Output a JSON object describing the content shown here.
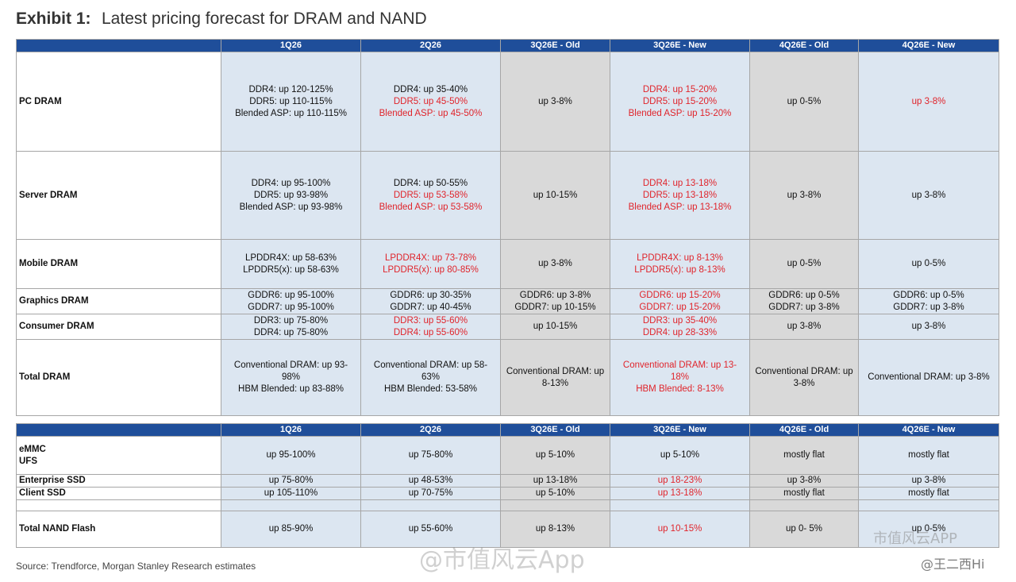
{
  "header": {
    "exhibit": "Exhibit 1:",
    "title": "Latest pricing forecast for DRAM and NAND"
  },
  "columns": [
    "1Q26",
    "2Q26",
    "3Q26E - Old",
    "3Q26E - New",
    "4Q26E - Old",
    "4Q26E - New"
  ],
  "dram": {
    "rows": [
      {
        "label": "PC DRAM",
        "cells": [
          [
            {
              "t": "DDR4: up 120-125%",
              "red": false
            },
            {
              "t": "DDR5: up 110-115%",
              "red": false
            },
            {
              "t": "Blended ASP: up 110-115%",
              "red": false
            }
          ],
          [
            {
              "t": "DDR4: up 35-40%",
              "red": false
            },
            {
              "t": "DDR5: up 45-50%",
              "red": true
            },
            {
              "t": "Blended ASP: up 45-50%",
              "red": true
            }
          ],
          [
            {
              "t": "up 3-8%",
              "red": false
            }
          ],
          [
            {
              "t": "DDR4: up 15-20%",
              "red": true
            },
            {
              "t": "DDR5: up 15-20%",
              "red": true
            },
            {
              "t": "Blended ASP: up 15-20%",
              "red": true
            }
          ],
          [
            {
              "t": "up 0-5%",
              "red": false
            }
          ],
          [
            {
              "t": "up 3-8%",
              "red": true
            }
          ]
        ]
      },
      {
        "label": "Server DRAM",
        "cells": [
          [
            {
              "t": "DDR4: up 95-100%",
              "red": false
            },
            {
              "t": "DDR5: up 93-98%",
              "red": false
            },
            {
              "t": "Blended ASP: up 93-98%",
              "red": false
            }
          ],
          [
            {
              "t": "DDR4: up 50-55%",
              "red": false
            },
            {
              "t": "DDR5: up 53-58%",
              "red": true
            },
            {
              "t": "Blended ASP: up 53-58%",
              "red": true
            }
          ],
          [
            {
              "t": "up 10-15%",
              "red": false
            }
          ],
          [
            {
              "t": "DDR4: up 13-18%",
              "red": true
            },
            {
              "t": "DDR5: up 13-18%",
              "red": true
            },
            {
              "t": "Blended ASP: up 13-18%",
              "red": true
            }
          ],
          [
            {
              "t": "up 3-8%",
              "red": false
            }
          ],
          [
            {
              "t": "up 3-8%",
              "red": false
            }
          ]
        ]
      },
      {
        "label": "Mobile DRAM",
        "cells": [
          [
            {
              "t": "LPDDR4X: up 58-63%",
              "red": false
            },
            {
              "t": "LPDDR5(x): up 58-63%",
              "red": false
            }
          ],
          [
            {
              "t": "LPDDR4X: up 73-78%",
              "red": true
            },
            {
              "t": "LPDDR5(x): up 80-85%",
              "red": true
            }
          ],
          [
            {
              "t": "up 3-8%",
              "red": false
            }
          ],
          [
            {
              "t": "LPDDR4X: up 8-13%",
              "red": true
            },
            {
              "t": "LPDDR5(x): up 8-13%",
              "red": true
            }
          ],
          [
            {
              "t": "up 0-5%",
              "red": false
            }
          ],
          [
            {
              "t": "up 0-5%",
              "red": false
            }
          ]
        ]
      },
      {
        "label": "Graphics DRAM",
        "cells": [
          [
            {
              "t": "GDDR6: up 95-100%",
              "red": false
            },
            {
              "t": "GDDR7: up 95-100%",
              "red": false
            }
          ],
          [
            {
              "t": "GDDR6: up 30-35%",
              "red": false
            },
            {
              "t": "GDDR7: up 40-45%",
              "red": false
            }
          ],
          [
            {
              "t": "GDDR6: up 3-8%",
              "red": false
            },
            {
              "t": "GDDR7: up 10-15%",
              "red": false
            }
          ],
          [
            {
              "t": "GDDR6: up 15-20%",
              "red": true
            },
            {
              "t": "GDDR7: up 15-20%",
              "red": true
            }
          ],
          [
            {
              "t": "GDDR6: up 0-5%",
              "red": false
            },
            {
              "t": "GDDR7: up 3-8%",
              "red": false
            }
          ],
          [
            {
              "t": "GDDR6: up 0-5%",
              "red": false
            },
            {
              "t": "GDDR7: up 3-8%",
              "red": false
            }
          ]
        ]
      },
      {
        "label": "Consumer DRAM",
        "cells": [
          [
            {
              "t": "DDR3: up 75-80%",
              "red": false
            },
            {
              "t": "DDR4: up 75-80%",
              "red": false
            }
          ],
          [
            {
              "t": "DDR3: up 55-60%",
              "red": true
            },
            {
              "t": "DDR4: up 55-60%",
              "red": true
            }
          ],
          [
            {
              "t": "up 10-15%",
              "red": false
            }
          ],
          [
            {
              "t": "DDR3: up 35-40%",
              "red": true
            },
            {
              "t": "DDR4: up 28-33%",
              "red": true
            }
          ],
          [
            {
              "t": "up 3-8%",
              "red": false
            }
          ],
          [
            {
              "t": "up 3-8%",
              "red": false
            }
          ]
        ]
      },
      {
        "label": "Total DRAM",
        "cells": [
          [
            {
              "t": "Conventional DRAM: up 93-",
              "red": false
            },
            {
              "t": "98%",
              "red": false
            },
            {
              "t": "HBM Blended: up 83-88%",
              "red": false
            }
          ],
          [
            {
              "t": "Conventional DRAM: up 58-",
              "red": false
            },
            {
              "t": "63%",
              "red": false
            },
            {
              "t": "HBM Blended: 53-58%",
              "red": false
            }
          ],
          [
            {
              "t": "Conventional DRAM: up",
              "red": false
            },
            {
              "t": "8-13%",
              "red": false
            }
          ],
          [
            {
              "t": "Conventional DRAM: up 13-",
              "red": true
            },
            {
              "t": "18%",
              "red": true
            },
            {
              "t": "HBM Blended: 8-13%",
              "red": true
            }
          ],
          [
            {
              "t": "Conventional DRAM: up",
              "red": false
            },
            {
              "t": "3-8%",
              "red": false
            }
          ],
          [
            {
              "t": "Conventional DRAM: up 3-8%",
              "red": false
            }
          ]
        ]
      }
    ]
  },
  "nand": {
    "rows": [
      {
        "label": [
          "eMMC",
          "UFS"
        ],
        "cells": [
          [
            {
              "t": "up 95-100%",
              "red": false
            }
          ],
          [
            {
              "t": "up 75-80%",
              "red": false
            }
          ],
          [
            {
              "t": "up 5-10%",
              "red": false
            }
          ],
          [
            {
              "t": "up 5-10%",
              "red": false
            }
          ],
          [
            {
              "t": "mostly flat",
              "red": false
            }
          ],
          [
            {
              "t": "mostly flat",
              "red": false
            }
          ]
        ]
      },
      {
        "label": [
          "Enterprise SSD"
        ],
        "cells": [
          [
            {
              "t": "up 75-80%",
              "red": false
            }
          ],
          [
            {
              "t": "up 48-53%",
              "red": false
            }
          ],
          [
            {
              "t": "up 13-18%",
              "red": false
            }
          ],
          [
            {
              "t": "up 18-23%",
              "red": true
            }
          ],
          [
            {
              "t": "up 3-8%",
              "red": false
            }
          ],
          [
            {
              "t": "up 3-8%",
              "red": false
            }
          ]
        ]
      },
      {
        "label": [
          "Client SSD"
        ],
        "cells": [
          [
            {
              "t": "up 105-110%",
              "red": false
            }
          ],
          [
            {
              "t": "up 70-75%",
              "red": false
            }
          ],
          [
            {
              "t": "up 5-10%",
              "red": false
            }
          ],
          [
            {
              "t": "up 13-18%",
              "red": true
            }
          ],
          [
            {
              "t": "mostly flat",
              "red": false
            }
          ],
          [
            {
              "t": "mostly flat",
              "red": false
            }
          ]
        ]
      },
      {
        "label": [],
        "cells": [
          [],
          [],
          [],
          [],
          [],
          []
        ]
      },
      {
        "label": [
          "Total NAND Flash"
        ],
        "cells": [
          [
            {
              "t": "up 85-90%",
              "red": false
            }
          ],
          [
            {
              "t": "up 55-60%",
              "red": false
            }
          ],
          [
            {
              "t": "up 8-13%",
              "red": false
            }
          ],
          [
            {
              "t": "up 10-15%",
              "red": true
            }
          ],
          [
            {
              "t": "up 0- 5%",
              "red": false
            }
          ],
          [
            {
              "t": "up 0-5%",
              "red": false
            }
          ]
        ]
      }
    ]
  },
  "colors": {
    "header_bg": "#1f4e9a",
    "cell_blue": "#dce6f1",
    "cell_grey": "#d9d9d9",
    "highlight_red": "#e0242b"
  },
  "footer": {
    "source": "Source: Trendforce, Morgan Stanley Research estimates"
  },
  "watermarks": {
    "center": "@市值风云App",
    "right_top": "市值风云APP",
    "right_bottom": "@王二西Hi"
  }
}
